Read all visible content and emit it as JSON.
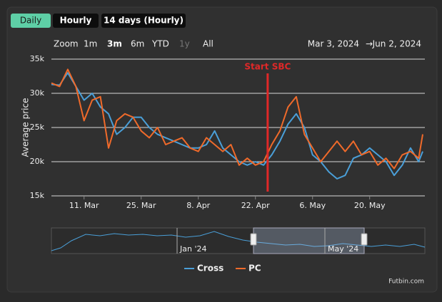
{
  "tabs": [
    "Daily",
    "Hourly",
    "14 days (Hourly)"
  ],
  "range_selector": {
    "label": "Zoom",
    "buttons": [
      "1m",
      "3m",
      "6m",
      "YTD",
      "1y",
      "All"
    ]
  },
  "date_range": {
    "from": "Mar 3, 2024",
    "separator": "→",
    "to": "Jun 2, 2024"
  },
  "chart_data": {
    "type": "line",
    "y_label": "Average price",
    "x": [
      "2024-03-03",
      "2024-03-05",
      "2024-03-07",
      "2024-03-09",
      "2024-03-11",
      "2024-03-13",
      "2024-03-15",
      "2024-03-17",
      "2024-03-19",
      "2024-03-21",
      "2024-03-23",
      "2024-03-25",
      "2024-03-27",
      "2024-03-29",
      "2024-03-31",
      "2024-04-02",
      "2024-04-04",
      "2024-04-06",
      "2024-04-08",
      "2024-04-10",
      "2024-04-12",
      "2024-04-14",
      "2024-04-16",
      "2024-04-18",
      "2024-04-20",
      "2024-04-22",
      "2024-04-24",
      "2024-04-26",
      "2024-04-28",
      "2024-04-30",
      "2024-05-02",
      "2024-05-04",
      "2024-05-06",
      "2024-05-08",
      "2024-05-10",
      "2024-05-12",
      "2024-05-14",
      "2024-05-16",
      "2024-05-18",
      "2024-05-20",
      "2024-05-22",
      "2024-05-24",
      "2024-05-26",
      "2024-05-28",
      "2024-05-30",
      "2024-06-01",
      "2024-06-02"
    ],
    "series": [
      {
        "name": "Cross",
        "color": "#4a9fd8",
        "values": [
          31300,
          31200,
          33000,
          31000,
          29000,
          30000,
          28000,
          27000,
          24000,
          25000,
          26500,
          26500,
          25000,
          24000,
          23500,
          23000,
          22500,
          22000,
          22000,
          22500,
          24500,
          22000,
          21000,
          20000,
          19500,
          20000,
          19500,
          21000,
          23000,
          25500,
          27000,
          25000,
          21000,
          20000,
          18500,
          17500,
          18000,
          20500,
          21000,
          22000,
          21000,
          20000,
          18000,
          19500,
          22000,
          20000,
          21500
        ]
      },
      {
        "name": "PC",
        "color": "#f06a2a",
        "values": [
          31500,
          31000,
          33500,
          31000,
          26000,
          29000,
          29500,
          22000,
          26000,
          27000,
          26500,
          24500,
          23500,
          25000,
          22500,
          23000,
          23500,
          22000,
          21500,
          23500,
          22500,
          21500,
          22500,
          19500,
          20500,
          19500,
          20000,
          22500,
          24500,
          28000,
          29500,
          24000,
          22000,
          20000,
          21500,
          23000,
          21500,
          23000,
          21000,
          21500,
          19500,
          20500,
          19000,
          21000,
          21500,
          20500,
          24000
        ]
      }
    ],
    "xlim": [
      "2024-03-03",
      "2024-06-02"
    ],
    "xticks": [
      {
        "value": "2024-03-11",
        "label": "11. Mar"
      },
      {
        "value": "2024-03-25",
        "label": "25. Mar"
      },
      {
        "value": "2024-04-08",
        "label": "8. Apr"
      },
      {
        "value": "2024-04-22",
        "label": "22. Apr"
      },
      {
        "value": "2024-05-06",
        "label": "6. May"
      },
      {
        "value": "2024-05-20",
        "label": "20. May"
      }
    ],
    "ylim": [
      15000,
      35000
    ],
    "yticks": [
      {
        "value": 15000,
        "label": "15k"
      },
      {
        "value": 20000,
        "label": "20k"
      },
      {
        "value": 25000,
        "label": "25k"
      },
      {
        "value": 30000,
        "label": "30k"
      },
      {
        "value": 35000,
        "label": "35k"
      }
    ],
    "grid": true,
    "legend": "bottom",
    "annotation": {
      "x": "2024-04-25",
      "label": "Start SBC",
      "color": "#e02828"
    }
  },
  "navigator": {
    "labels": [
      "Jan '24",
      "May '24"
    ]
  },
  "credits": "Futbin.com"
}
